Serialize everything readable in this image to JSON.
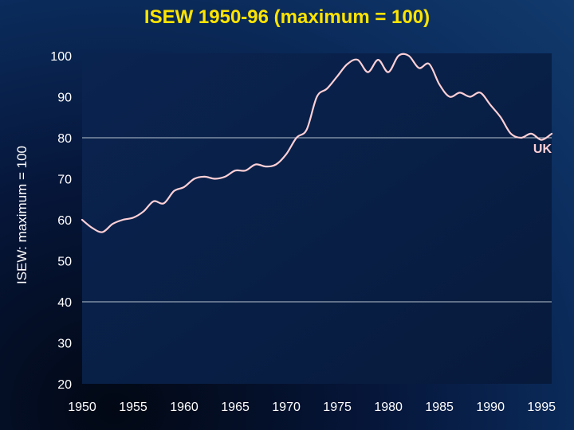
{
  "title": "ISEW 1950-96 (maximum = 100)",
  "colors": {
    "title": "#ffe400",
    "line": "#ffd0d6",
    "gridline": "#b8c4cf"
  },
  "chart_data": {
    "type": "line",
    "title": "ISEW 1950-96 (maximum = 100)",
    "xlabel": "",
    "ylabel": "ISEW: maximum = 100",
    "xlim": [
      1950,
      1996
    ],
    "ylim": [
      20,
      100
    ],
    "x_ticks": [
      1950,
      1955,
      1960,
      1965,
      1970,
      1975,
      1980,
      1985,
      1990,
      1995
    ],
    "y_ticks": [
      20,
      30,
      40,
      50,
      60,
      70,
      80,
      90,
      100
    ],
    "gridlines_y": [
      40,
      80
    ],
    "series": [
      {
        "name": "UK",
        "x": [
          1950,
          1951,
          1952,
          1953,
          1954,
          1955,
          1956,
          1957,
          1958,
          1959,
          1960,
          1961,
          1962,
          1963,
          1964,
          1965,
          1966,
          1967,
          1968,
          1969,
          1970,
          1971,
          1972,
          1973,
          1974,
          1975,
          1976,
          1977,
          1978,
          1979,
          1980,
          1981,
          1982,
          1983,
          1984,
          1985,
          1986,
          1987,
          1988,
          1989,
          1990,
          1991,
          1992,
          1993,
          1994,
          1995,
          1996
        ],
        "y": [
          60,
          58,
          57,
          59,
          60,
          60.5,
          62,
          64.5,
          64,
          67,
          68,
          70,
          70.5,
          70,
          70.5,
          72,
          72,
          73.5,
          73,
          73.5,
          76,
          80,
          82,
          90,
          92,
          95,
          98,
          99,
          96,
          99,
          96,
          100,
          100,
          97,
          98,
          93,
          90,
          91,
          90,
          91,
          88,
          85,
          81,
          80,
          81,
          79.5,
          81
        ]
      }
    ]
  }
}
